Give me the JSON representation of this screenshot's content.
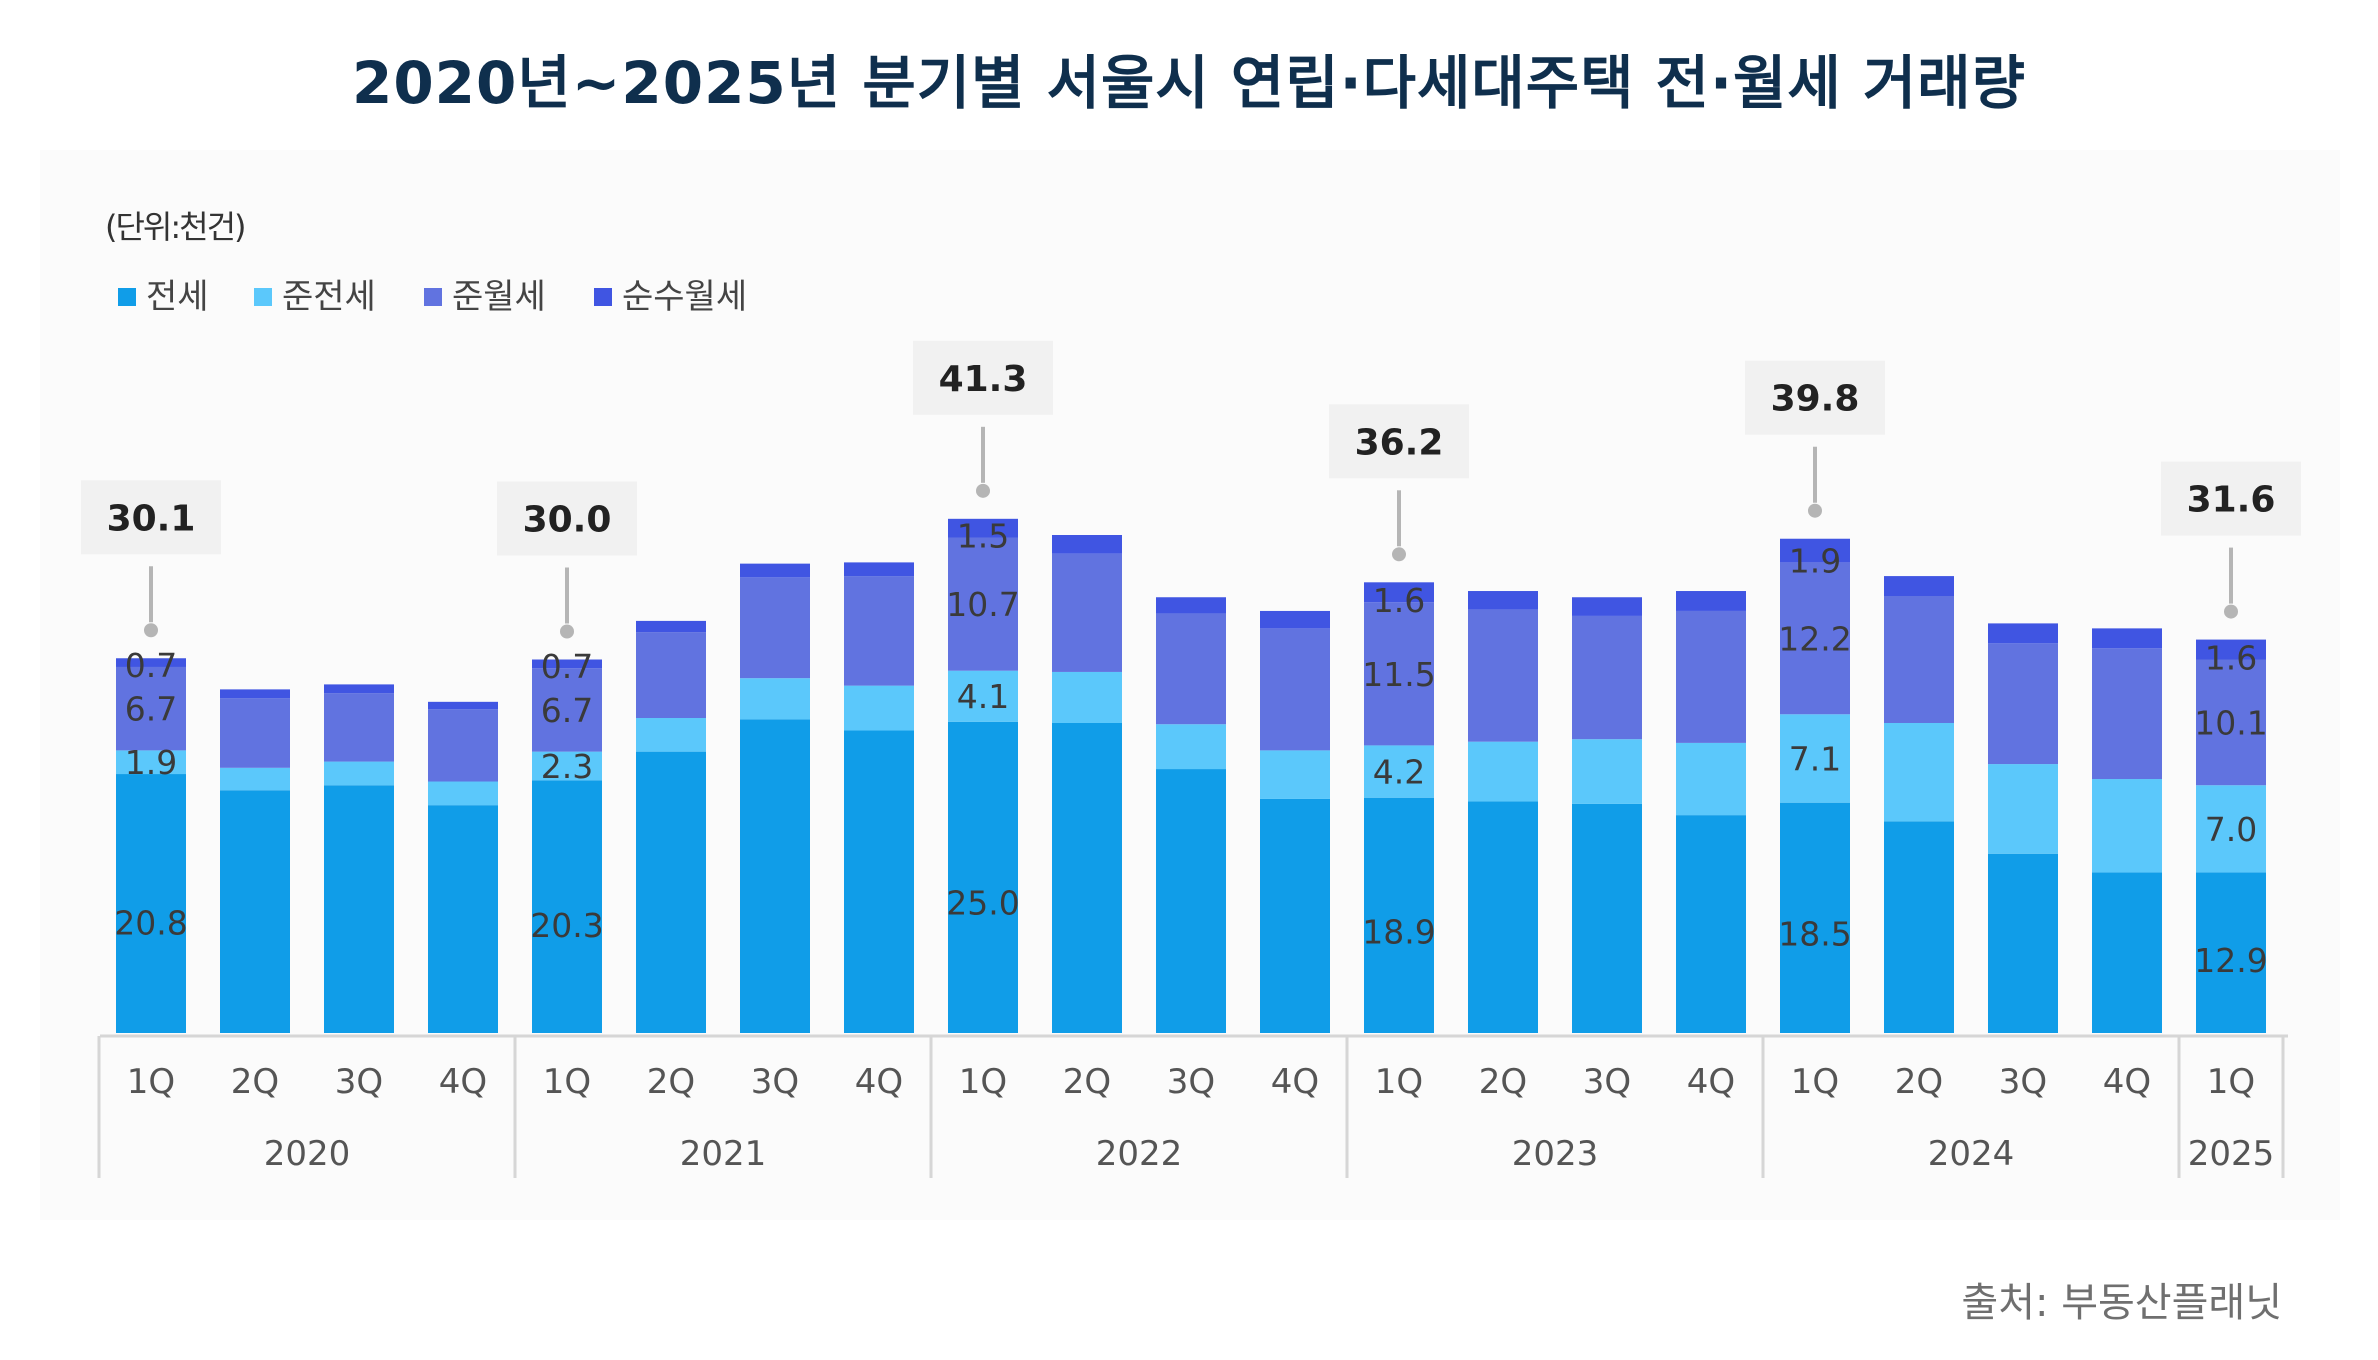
{
  "title": "2020년~2025년 분기별 서울시 연립·다세대주택 전·월세 거래량",
  "source": "출처: 부동산플래닛",
  "chart_data": {
    "type": "bar",
    "stacked": true,
    "unit_label": "(단위:천건)",
    "legend_position": "top-left",
    "categories": [
      "1Q",
      "2Q",
      "3Q",
      "4Q",
      "1Q",
      "2Q",
      "3Q",
      "4Q",
      "1Q",
      "2Q",
      "3Q",
      "4Q",
      "1Q",
      "2Q",
      "3Q",
      "4Q",
      "1Q",
      "2Q",
      "3Q",
      "4Q",
      "1Q"
    ],
    "years": [
      {
        "label": "2020",
        "count": 4
      },
      {
        "label": "2021",
        "count": 4
      },
      {
        "label": "2022",
        "count": 4
      },
      {
        "label": "2023",
        "count": 4
      },
      {
        "label": "2024",
        "count": 4
      },
      {
        "label": "2025",
        "count": 1
      }
    ],
    "series": [
      {
        "name": "전세",
        "color": "#109de8",
        "values": [
          20.8,
          19.5,
          19.9,
          18.3,
          20.3,
          22.6,
          25.2,
          24.3,
          25.0,
          24.9,
          21.2,
          18.8,
          18.9,
          18.6,
          18.4,
          17.5,
          18.5,
          17.0,
          14.4,
          12.9,
          12.9
        ],
        "labels": [
          "20.8",
          null,
          null,
          null,
          "20.3",
          null,
          null,
          null,
          "25.0",
          null,
          null,
          null,
          "18.9",
          null,
          null,
          null,
          "18.5",
          null,
          null,
          null,
          "12.9"
        ]
      },
      {
        "name": "준전세",
        "color": "#5bc8fb",
        "values": [
          1.9,
          1.8,
          1.9,
          1.9,
          2.3,
          2.7,
          3.3,
          3.6,
          4.1,
          4.1,
          3.6,
          3.9,
          4.2,
          4.8,
          5.2,
          5.8,
          7.1,
          7.9,
          7.2,
          7.5,
          7.0
        ],
        "labels": [
          "1.9",
          null,
          null,
          null,
          "2.3",
          null,
          null,
          null,
          "4.1",
          null,
          null,
          null,
          "4.2",
          null,
          null,
          null,
          "7.1",
          null,
          null,
          null,
          "7.0"
        ]
      },
      {
        "name": "준월세",
        "color": "#6173e0",
        "values": [
          6.7,
          5.6,
          5.5,
          5.8,
          6.7,
          6.9,
          8.1,
          8.8,
          10.7,
          9.5,
          8.9,
          9.8,
          11.5,
          10.6,
          9.9,
          10.6,
          12.2,
          10.2,
          9.7,
          10.5,
          10.1
        ],
        "labels": [
          "6.7",
          null,
          null,
          null,
          "6.7",
          null,
          null,
          null,
          "10.7",
          null,
          null,
          null,
          "11.5",
          null,
          null,
          null,
          "12.2",
          null,
          null,
          null,
          "10.1"
        ]
      },
      {
        "name": "순수월세",
        "color": "#4055e2",
        "values": [
          0.7,
          0.7,
          0.7,
          0.6,
          0.7,
          0.9,
          1.1,
          1.1,
          1.5,
          1.5,
          1.3,
          1.4,
          1.6,
          1.5,
          1.5,
          1.6,
          1.9,
          1.6,
          1.6,
          1.6,
          1.6
        ],
        "labels": [
          "0.7",
          null,
          null,
          null,
          "0.7",
          null,
          null,
          null,
          "1.5",
          null,
          null,
          null,
          "1.6",
          null,
          null,
          null,
          "1.9",
          null,
          null,
          null,
          "1.6"
        ]
      }
    ],
    "totals": [
      "30.1",
      null,
      null,
      null,
      "30.0",
      null,
      null,
      null,
      "41.3",
      null,
      null,
      null,
      "36.2",
      null,
      null,
      null,
      "39.8",
      null,
      null,
      null,
      "31.6"
    ],
    "ylim": [
      0,
      42
    ],
    "grid": false
  }
}
